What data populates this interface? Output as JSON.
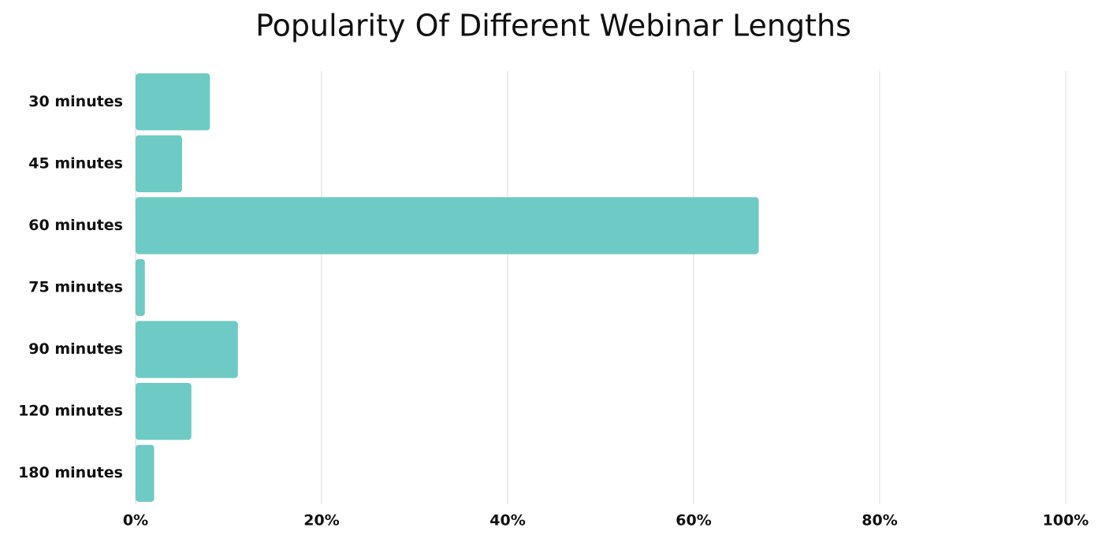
{
  "chart_data": {
    "type": "hbar",
    "title": "Popularity Of Different Webinar Lengths",
    "categories": [
      "30 minutes",
      "45 minutes",
      "60 minutes",
      "75 minutes",
      "90 minutes",
      "120 minutes",
      "180 minutes"
    ],
    "values": [
      8,
      5,
      67,
      1,
      11,
      6,
      2
    ],
    "color": "#6ecac4",
    "xlim": [
      0,
      100
    ],
    "xticks": [
      {
        "value": 0,
        "label": "0%"
      },
      {
        "value": 20,
        "label": "20%"
      },
      {
        "value": 40,
        "label": "40%"
      },
      {
        "value": 60,
        "label": "60%"
      },
      {
        "value": 80,
        "label": "80%"
      },
      {
        "value": 100,
        "label": "100%"
      }
    ],
    "grid": true
  }
}
